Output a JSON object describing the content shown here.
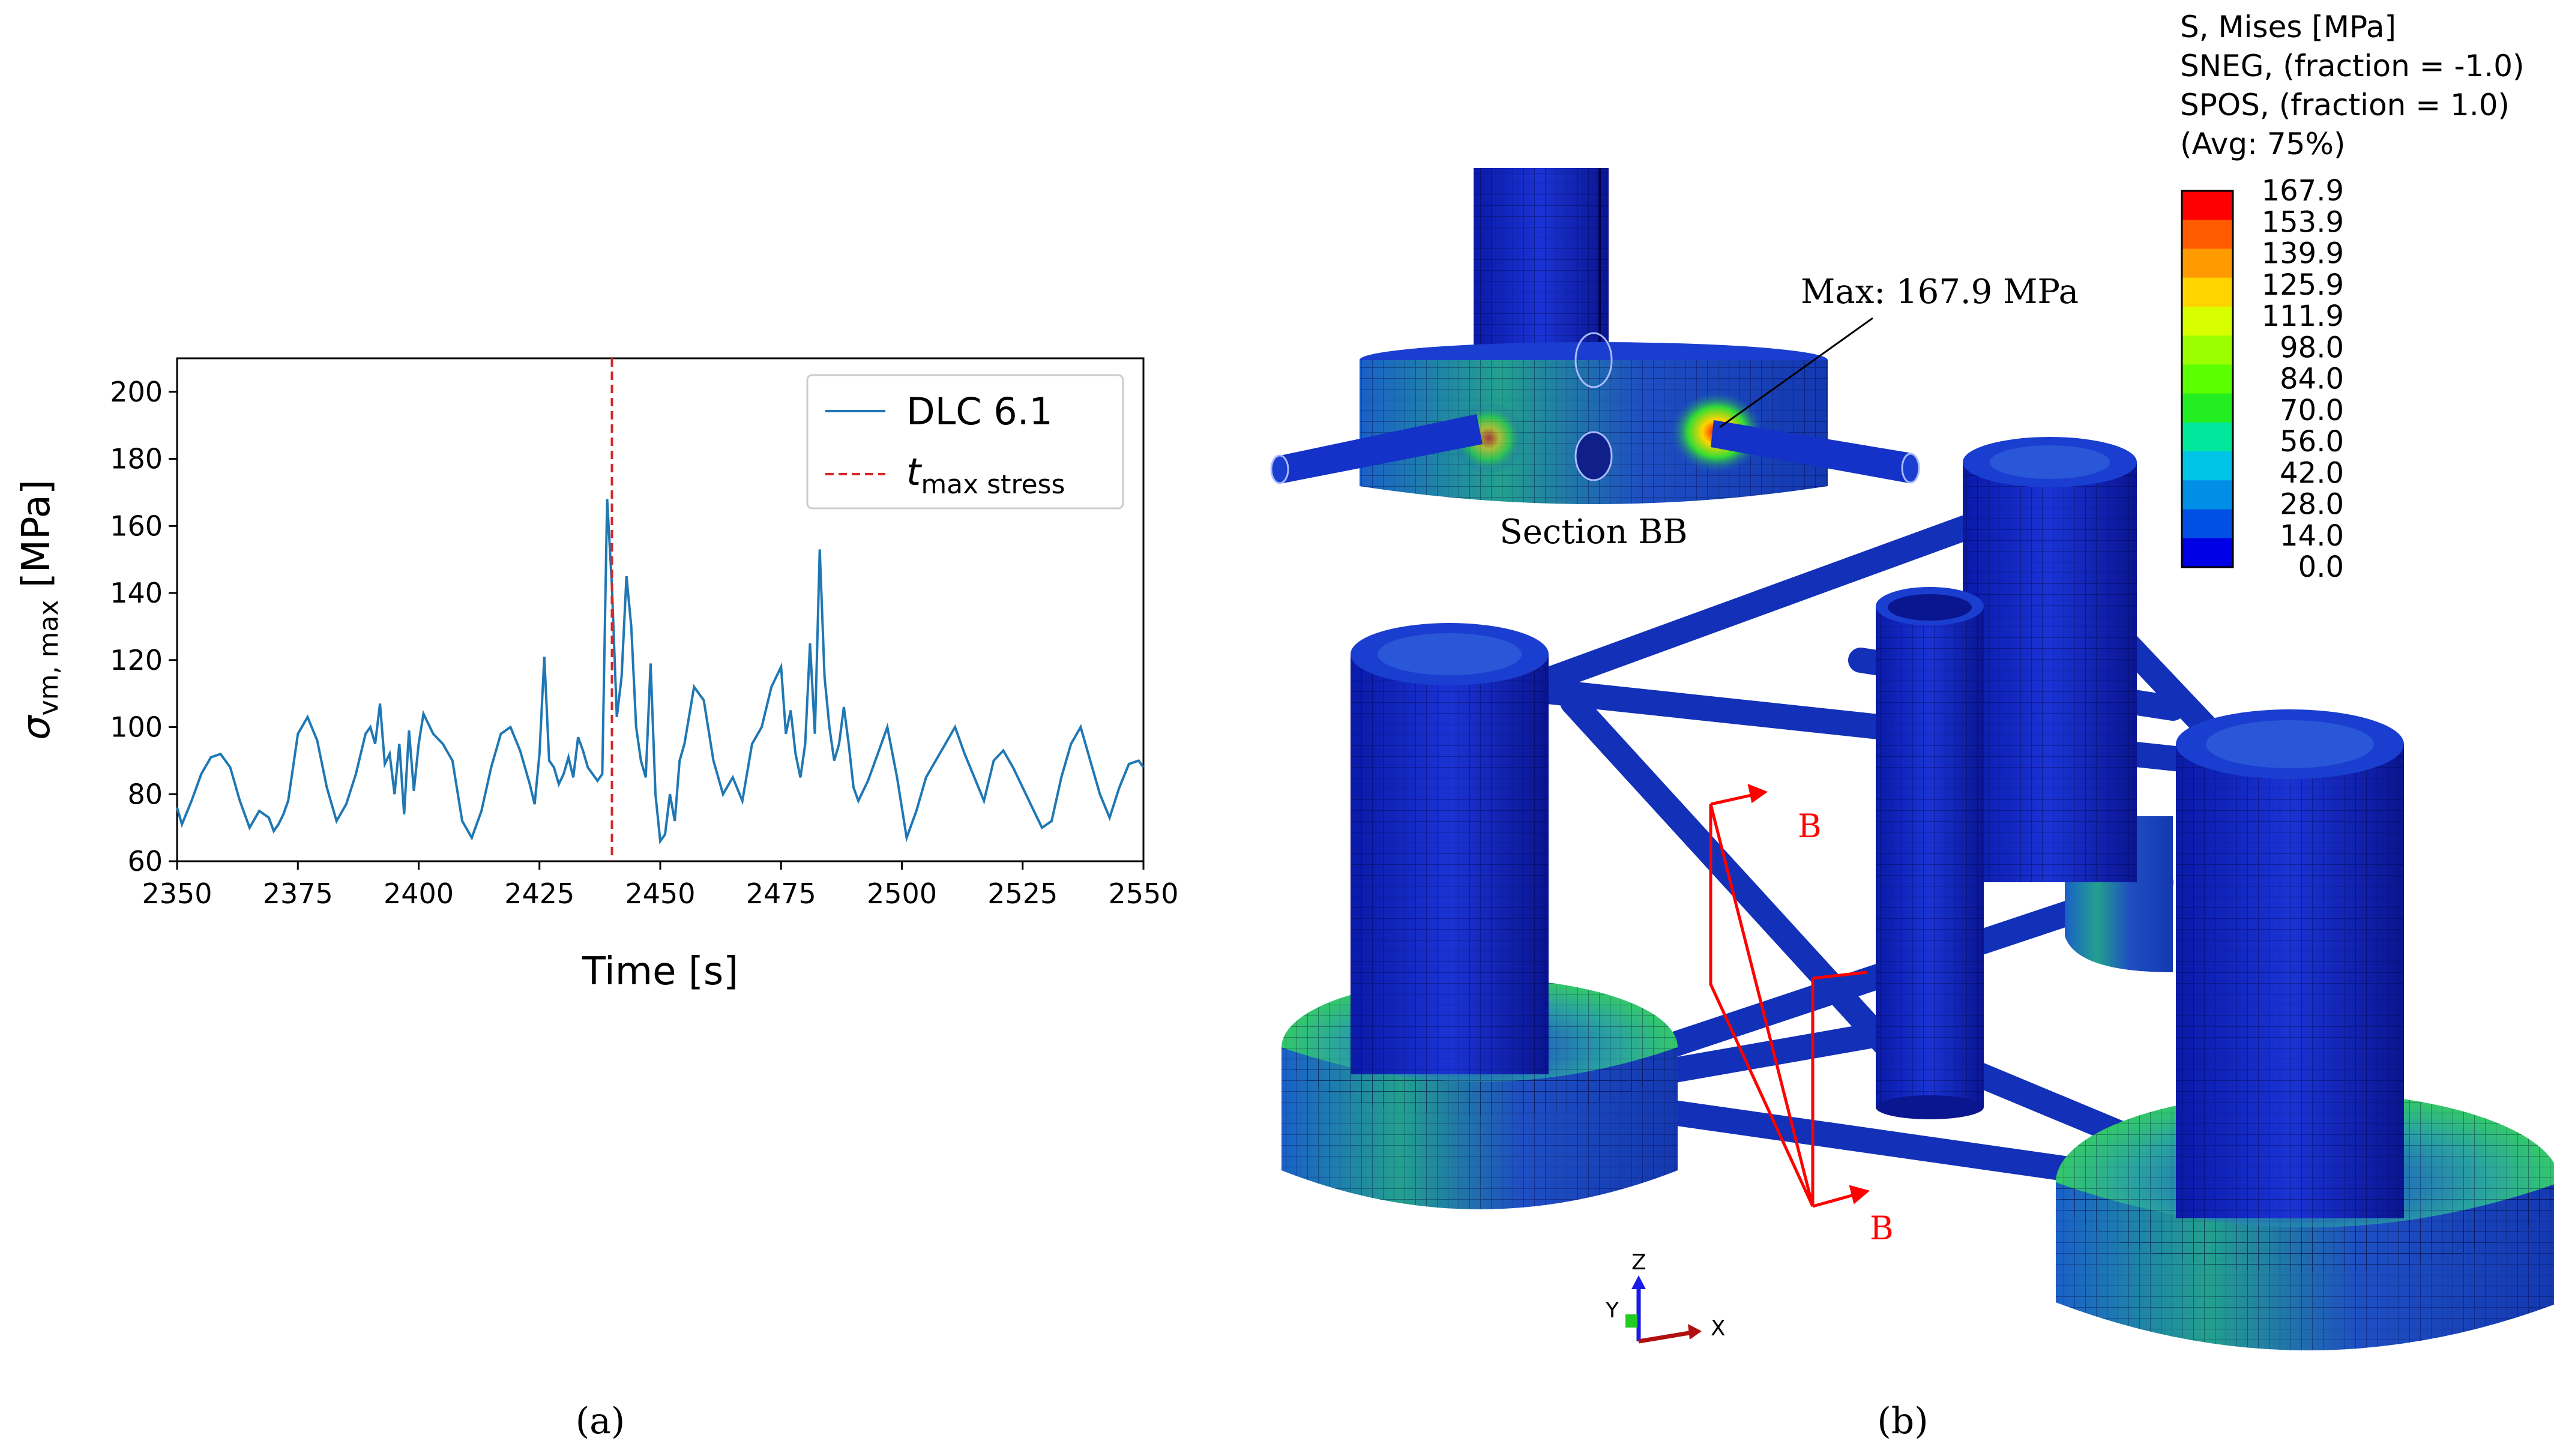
{
  "chart_data": {
    "type": "line",
    "xlabel": "Time [s]",
    "ylabel": {
      "base": "σ",
      "sub": "vm, max",
      "unit": " [MPa]"
    },
    "xlim": [
      2350,
      2550
    ],
    "ylim": [
      60,
      210
    ],
    "xticks": [
      "2350",
      "2375",
      "2400",
      "2425",
      "2450",
      "2475",
      "2500",
      "2525",
      "2550"
    ],
    "yticks": [
      "60",
      "80",
      "100",
      "120",
      "140",
      "160",
      "180",
      "200"
    ],
    "legend_position": "top-right",
    "grid": false,
    "series": [
      {
        "name": "DLC 6.1",
        "color": "#1f77b4",
        "x": [
          2350,
          2351,
          2353,
          2355,
          2357,
          2359,
          2361,
          2363,
          2365,
          2367,
          2369,
          2370,
          2371,
          2372,
          2373,
          2374,
          2375,
          2377,
          2379,
          2381,
          2383,
          2385,
          2387,
          2389,
          2390,
          2391,
          2392,
          2393,
          2394,
          2395,
          2396,
          2397,
          2398,
          2399,
          2400,
          2401,
          2403,
          2405,
          2407,
          2409,
          2411,
          2413,
          2415,
          2417,
          2419,
          2421,
          2423,
          2424,
          2425,
          2426,
          2427,
          2428,
          2429,
          2430,
          2431,
          2432,
          2433,
          2434,
          2435,
          2436,
          2437,
          2438,
          2439,
          2440,
          2441,
          2442,
          2443,
          2444,
          2445,
          2446,
          2447,
          2448,
          2449,
          2450,
          2451,
          2452,
          2453,
          2454,
          2455,
          2457,
          2459,
          2461,
          2463,
          2465,
          2467,
          2469,
          2471,
          2473,
          2475,
          2476,
          2477,
          2478,
          2479,
          2480,
          2481,
          2482,
          2483,
          2484,
          2485,
          2486,
          2487,
          2488,
          2489,
          2490,
          2491,
          2493,
          2495,
          2497,
          2499,
          2501,
          2503,
          2505,
          2507,
          2509,
          2511,
          2513,
          2515,
          2517,
          2519,
          2521,
          2523,
          2525,
          2527,
          2529,
          2531,
          2533,
          2535,
          2537,
          2539,
          2541,
          2543,
          2545,
          2547,
          2549,
          2550
        ],
        "y": [
          76,
          71,
          78,
          86,
          91,
          92,
          88,
          78,
          70,
          75,
          73,
          69,
          71,
          74,
          78,
          88,
          98,
          103,
          96,
          82,
          72,
          77,
          86,
          98,
          100,
          95,
          107,
          89,
          92,
          80,
          95,
          74,
          99,
          81,
          95,
          104,
          98,
          95,
          90,
          72,
          67,
          75,
          88,
          98,
          100,
          93,
          83,
          77,
          92,
          121,
          90,
          88,
          83,
          86,
          91,
          85,
          97,
          93,
          88,
          86,
          84,
          86,
          168,
          142,
          103,
          115,
          145,
          130,
          100,
          90,
          85,
          119,
          80,
          66,
          68,
          80,
          72,
          90,
          95,
          112,
          108,
          90,
          80,
          85,
          78,
          95,
          100,
          112,
          118,
          98,
          105,
          92,
          85,
          95,
          125,
          98,
          153,
          115,
          100,
          90,
          95,
          106,
          95,
          82,
          78,
          84,
          92,
          100,
          85,
          67,
          75,
          85,
          90,
          95,
          100,
          92,
          85,
          78,
          90,
          93,
          88,
          82,
          76,
          70,
          72,
          85,
          95,
          100,
          90,
          80,
          73,
          82,
          89,
          90,
          88
        ],
        "style": "solid"
      },
      {
        "name": "t_max stress",
        "label_base": "t",
        "label_sub": "max stress",
        "color": "#d62728",
        "x_value": 2440,
        "style": "dashed"
      }
    ]
  },
  "figure_b": {
    "legend_title_lines": [
      "S, Mises [MPa]",
      "SNEG, (fraction = -1.0)",
      "SPOS, (fraction = 1.0)",
      "(Avg: 75%)"
    ],
    "colorbar_values": [
      "167.9",
      "153.9",
      "139.9",
      "125.9",
      "111.9",
      "98.0",
      "84.0",
      "70.0",
      "56.0",
      "42.0",
      "28.0",
      "14.0",
      "0.0"
    ],
    "colorbar_colors": [
      "#ff0000",
      "#ff5a00",
      "#ff9a00",
      "#ffd400",
      "#d8ff00",
      "#9cff00",
      "#5cff00",
      "#22ee22",
      "#00e69a",
      "#00c4e6",
      "#008ee6",
      "#0050e6",
      "#0000e6"
    ],
    "max_annotation": "Max: 167.9 MPa",
    "section_label": "Section BB",
    "section_markers": [
      "B",
      "B"
    ],
    "triad_axes": [
      "Z",
      "Y",
      "X"
    ]
  },
  "captions": {
    "a": "(a)",
    "b": "(b)"
  }
}
